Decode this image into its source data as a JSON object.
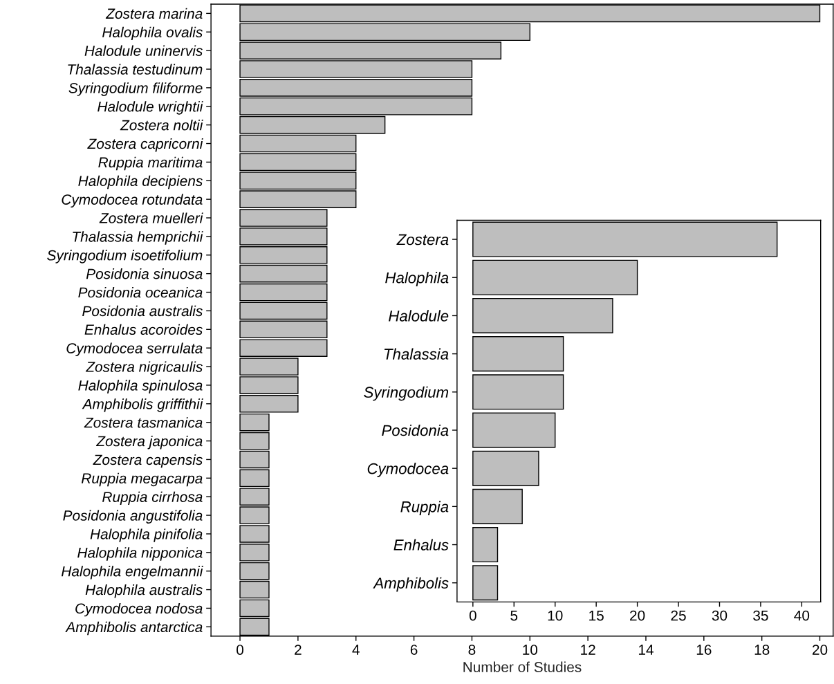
{
  "chart_data": [
    {
      "type": "bar",
      "orientation": "horizontal",
      "xlabel": "Number of Studies",
      "categories": [
        "Zostera marina",
        "Halophila ovalis",
        "Halodule uninervis",
        "Thalassia testudinum",
        "Syringodium filiforme",
        "Halodule wrightii",
        "Zostera noltii",
        "Zostera capricorni",
        "Ruppia maritima",
        "Halophila decipiens",
        "Cymodocea rotundata",
        "Zostera muelleri",
        "Thalassia hemprichii",
        "Syringodium isoetifolium",
        "Posidonia sinuosa",
        "Posidonia oceanica",
        "Posidonia australis",
        "Enhalus acoroides",
        "Cymodocea serrulata",
        "Zostera nigricaulis",
        "Halophila spinulosa",
        "Amphibolis griffithii",
        "Zostera tasmanica",
        "Zostera japonica",
        "Zostera capensis",
        "Ruppia megacarpa",
        "Ruppia cirrhosa",
        "Posidonia angustifolia",
        "Halophila pinifolia",
        "Halophila nipponica",
        "Halophila engelmannii",
        "Halophila australis",
        "Cymodocea nodosa",
        "Amphibolis antarctica"
      ],
      "series": [
        {
          "color": "#bebebe",
          "values": [
            20,
            10,
            9,
            8,
            8,
            8,
            5,
            4,
            4,
            4,
            4,
            3,
            3,
            3,
            3,
            3,
            3,
            3,
            3,
            2,
            2,
            2,
            1,
            1,
            1,
            1,
            1,
            1,
            1,
            1,
            1,
            1,
            1,
            1
          ]
        }
      ],
      "xlim": [
        -1.0,
        20.46
      ],
      "xticks": [
        0,
        2,
        4,
        6,
        8,
        10,
        12,
        14,
        16,
        18,
        20
      ],
      "grid": false,
      "legend": false
    },
    {
      "type": "bar",
      "orientation": "horizontal",
      "categories": [
        "Zostera",
        "Halophila",
        "Halodule",
        "Thalassia",
        "Syringodium",
        "Posidonia",
        "Cymodocea",
        "Ruppia",
        "Enhalus",
        "Amphibolis"
      ],
      "series": [
        {
          "color": "#bebebe",
          "values": [
            37,
            20,
            17,
            11,
            11,
            10,
            8,
            6,
            3,
            3
          ]
        }
      ],
      "xlim": [
        -1.93,
        42.3
      ],
      "xticks": [
        0,
        5,
        10,
        15,
        20,
        25,
        30,
        35,
        40
      ],
      "grid": false,
      "legend": false
    }
  ]
}
